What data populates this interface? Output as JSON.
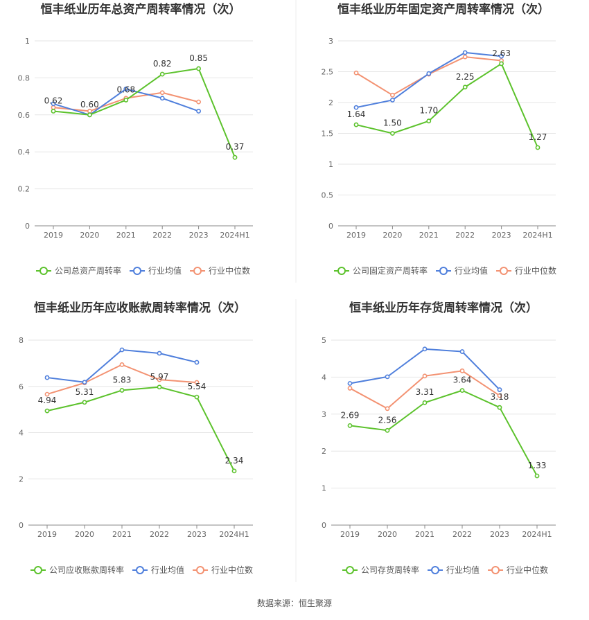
{
  "footer": {
    "source": "数据来源：恒生聚源"
  },
  "colors": {
    "company": "#5cc22c",
    "avg": "#4f7fdc",
    "median": "#f39272",
    "grid": "#e6e6e6",
    "axis": "#888888",
    "title": "#333333",
    "tick": "#666666",
    "divider": "#ececec"
  },
  "chart_data": [
    {
      "type": "line",
      "title": "恒丰纸业历年总资产周转率情况（次）",
      "categories": [
        "2019",
        "2020",
        "2021",
        "2022",
        "2023",
        "2024H1"
      ],
      "ylim": [
        0,
        1
      ],
      "yticks": [
        0,
        0.2,
        0.4,
        0.6,
        0.8,
        1
      ],
      "ytick_labels": [
        "0",
        "0.2",
        "0.4",
        "0.6",
        "0.8",
        "1"
      ],
      "grid": true,
      "legend_position": "bottom",
      "series": [
        {
          "name": "公司总资产周转率",
          "role": "company",
          "values": [
            0.62,
            0.6,
            0.68,
            0.82,
            0.85,
            0.37
          ],
          "labels": [
            "0.62",
            "0.60",
            "0.68",
            "0.82",
            "0.85",
            "0.37"
          ]
        },
        {
          "name": "行业均值",
          "role": "avg",
          "values": [
            0.66,
            0.6,
            0.74,
            0.69,
            0.62,
            null
          ]
        },
        {
          "name": "行业中位数",
          "role": "median",
          "values": [
            0.64,
            0.62,
            0.69,
            0.72,
            0.67,
            null
          ]
        }
      ]
    },
    {
      "type": "line",
      "title": "恒丰纸业历年固定资产周转率情况（次）",
      "categories": [
        "2019",
        "2020",
        "2021",
        "2022",
        "2023",
        "2024H1"
      ],
      "ylim": [
        0,
        3
      ],
      "yticks": [
        0,
        0.5,
        1,
        1.5,
        2,
        2.5,
        3
      ],
      "ytick_labels": [
        "0",
        "0.5",
        "1",
        "1.5",
        "2",
        "2.5",
        "3"
      ],
      "grid": true,
      "legend_position": "bottom",
      "series": [
        {
          "name": "公司固定资产周转率",
          "role": "company",
          "values": [
            1.64,
            1.5,
            1.7,
            2.25,
            2.63,
            1.27
          ],
          "labels": [
            "1.64",
            "1.50",
            "1.70",
            "2.25",
            "2.63",
            "1.27"
          ]
        },
        {
          "name": "行业均值",
          "role": "avg",
          "values": [
            1.92,
            2.04,
            2.47,
            2.81,
            2.75,
            null
          ]
        },
        {
          "name": "行业中位数",
          "role": "median",
          "values": [
            2.48,
            2.12,
            2.46,
            2.74,
            2.68,
            null
          ]
        }
      ]
    },
    {
      "type": "line",
      "title": "恒丰纸业历年应收账款周转率情况（次）",
      "categories": [
        "2019",
        "2020",
        "2021",
        "2022",
        "2023",
        "2024H1"
      ],
      "ylim": [
        0,
        8
      ],
      "yticks": [
        0,
        2,
        4,
        6,
        8
      ],
      "ytick_labels": [
        "0",
        "2",
        "4",
        "6",
        "8"
      ],
      "grid": true,
      "legend_position": "bottom",
      "series": [
        {
          "name": "公司应收账款周转率",
          "role": "company",
          "values": [
            4.94,
            5.31,
            5.83,
            5.97,
            5.54,
            2.34
          ],
          "labels": [
            "4.94",
            "5.31",
            "5.83",
            "5.97",
            "5.54",
            "2.34"
          ]
        },
        {
          "name": "行业均值",
          "role": "avg",
          "values": [
            6.38,
            6.18,
            7.58,
            7.43,
            7.04,
            null
          ]
        },
        {
          "name": "行业中位数",
          "role": "median",
          "values": [
            5.66,
            6.15,
            6.94,
            6.29,
            6.17,
            null
          ]
        }
      ]
    },
    {
      "type": "line",
      "title": "恒丰纸业历年存货周转率情况（次）",
      "categories": [
        "2019",
        "2020",
        "2021",
        "2022",
        "2023",
        "2024H1"
      ],
      "ylim": [
        0,
        5
      ],
      "yticks": [
        0,
        1,
        2,
        3,
        4,
        5
      ],
      "ytick_labels": [
        "0",
        "1",
        "2",
        "3",
        "4",
        "5"
      ],
      "grid": true,
      "legend_position": "bottom",
      "series": [
        {
          "name": "公司存货周转率",
          "role": "company",
          "values": [
            2.69,
            2.56,
            3.31,
            3.64,
            3.18,
            1.33
          ],
          "labels": [
            "2.69",
            "2.56",
            "3.31",
            "3.64",
            "3.18",
            "1.33"
          ]
        },
        {
          "name": "行业均值",
          "role": "avg",
          "values": [
            3.83,
            4.01,
            4.76,
            4.69,
            3.66,
            null
          ]
        },
        {
          "name": "行业中位数",
          "role": "median",
          "values": [
            3.7,
            3.15,
            4.03,
            4.17,
            3.5,
            null
          ]
        }
      ]
    }
  ]
}
